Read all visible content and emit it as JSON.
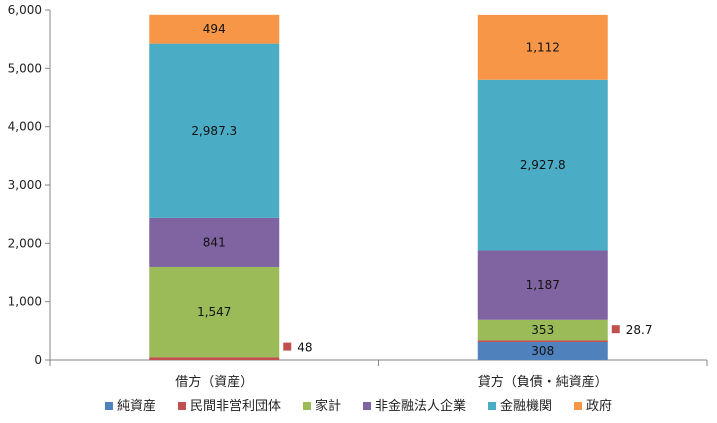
{
  "chart_data": {
    "type": "bar",
    "stacked": true,
    "categories": [
      "借方（資産）",
      "貸方（負債・純資産）"
    ],
    "ylim": [
      0,
      6000
    ],
    "yticks": [
      "0",
      "1,000",
      "2,000",
      "3,000",
      "4,000",
      "5,000",
      "6,000"
    ],
    "ytick_values": [
      0,
      1000,
      2000,
      3000,
      4000,
      5000,
      6000
    ],
    "grid": false,
    "legend_position": "bottom",
    "series": [
      {
        "name": "純資産",
        "color": "#4f81bd",
        "values": [
          0,
          308
        ],
        "labels": [
          "",
          "308"
        ]
      },
      {
        "name": "民間非営利団体",
        "color": "#c0504d",
        "values": [
          48,
          28.7
        ],
        "labels": [
          "48",
          "28.7"
        ],
        "outside_label": true
      },
      {
        "name": "家計",
        "color": "#9bbb59",
        "values": [
          1547,
          353
        ],
        "labels": [
          "1,547",
          "353"
        ]
      },
      {
        "name": "非金融法人企業",
        "color": "#8064a2",
        "values": [
          841,
          1187
        ],
        "labels": [
          "841",
          "1,187"
        ]
      },
      {
        "name": "金融機関",
        "color": "#4bacc6",
        "values": [
          2987.3,
          2927.8
        ],
        "labels": [
          "2,987.3",
          "2,927.8"
        ]
      },
      {
        "name": "政府",
        "color": "#f79646",
        "values": [
          494,
          1112
        ],
        "labels": [
          "494",
          "1,112"
        ]
      }
    ]
  }
}
